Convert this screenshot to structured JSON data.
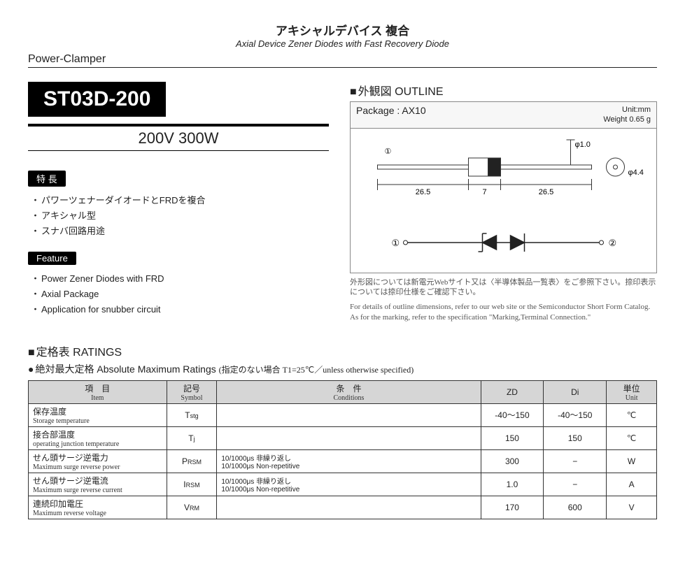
{
  "header": {
    "jp": "アキシャルデバイス 複合",
    "en": "Axial Device   Zener Diodes with Fast Recovery Diode",
    "series": "Power-Clamper"
  },
  "part": {
    "name": "ST03D-200",
    "spec": "200V 300W"
  },
  "features_jp": {
    "label": "特 長",
    "items": [
      "パワーツェナーダイオードとFRDを複合",
      "アキシャル型",
      "スナバ回路用途"
    ]
  },
  "features_en": {
    "label": "Feature",
    "items": [
      "Power Zener Diodes with FRD",
      "Axial Package",
      "Application for snubber circuit"
    ]
  },
  "outline": {
    "header_jp": "外観図",
    "header_en": "OUTLINE",
    "package": "Package : AX10",
    "unit": "Unit:mm",
    "weight": "Weight 0.65 g",
    "dims": {
      "lead": "26.5",
      "body": "7",
      "lead_dia": "φ1.0",
      "body_dia": "φ4.4"
    },
    "note_jp": "外形図については新電元Webサイト又は〈半導体製品一覧表〉をご参照下さい。捺印表示については捺印仕様をご確認下さい。",
    "note_en": "For details of outline dimensions, refer to our web site or the Semiconductor Short Form Catalog. As for the marking, refer to the specification \"Marking,Terminal Connection.\""
  },
  "ratings": {
    "header_jp": "定格表",
    "header_en": "RATINGS",
    "abs_jp": "絶対最大定格",
    "abs_en": "Absolute Maximum Ratings",
    "abs_cond": "(指定のない場合 T1=25℃／unless otherwise specified)",
    "columns": {
      "item_jp": "項　目",
      "item_en": "Item",
      "sym_jp": "記号",
      "sym_en": "Symbol",
      "cond_jp": "条　件",
      "cond_en": "Conditions",
      "zd": "ZD",
      "di": "Di",
      "unit_jp": "単位",
      "unit_en": "Unit"
    },
    "rows": [
      {
        "item_jp": "保存温度",
        "item_en": "Storage temperature",
        "sym_main": "T",
        "sym_sub": "stg",
        "cond_jp": "",
        "cond_en": "",
        "zd": "-40〜150",
        "di": "-40〜150",
        "unit": "℃"
      },
      {
        "item_jp": "接合部温度",
        "item_en": "operating junction temperature",
        "sym_main": "T",
        "sym_sub": "j",
        "cond_jp": "",
        "cond_en": "",
        "zd": "150",
        "di": "150",
        "unit": "℃"
      },
      {
        "item_jp": "せん頭サージ逆電力",
        "item_en": "Maximum surge reverse power",
        "sym_main": "P",
        "sym_sub": "RSM",
        "cond_jp": "10/1000μs 非繰り返し",
        "cond_en": "10/1000μs Non-repetitive",
        "zd": "300",
        "di": "−",
        "unit": "W"
      },
      {
        "item_jp": "せん頭サージ逆電流",
        "item_en": "Maximum surge reverse current",
        "sym_main": "I",
        "sym_sub": "RSM",
        "cond_jp": "10/1000μs 非繰り返し",
        "cond_en": "10/1000μs Non-repetitive",
        "zd": "1.0",
        "di": "−",
        "unit": "A"
      },
      {
        "item_jp": "連続印加電圧",
        "item_en": "Maximum reverse voltage",
        "sym_main": "V",
        "sym_sub": "RM",
        "cond_jp": "",
        "cond_en": "",
        "zd": "170",
        "di": "600",
        "unit": "V"
      }
    ]
  },
  "diagram": {
    "circ1": "①",
    "circ2": "②",
    "colors": {
      "line": "#333333",
      "body": "#222222",
      "bg": "#ffffff"
    }
  }
}
